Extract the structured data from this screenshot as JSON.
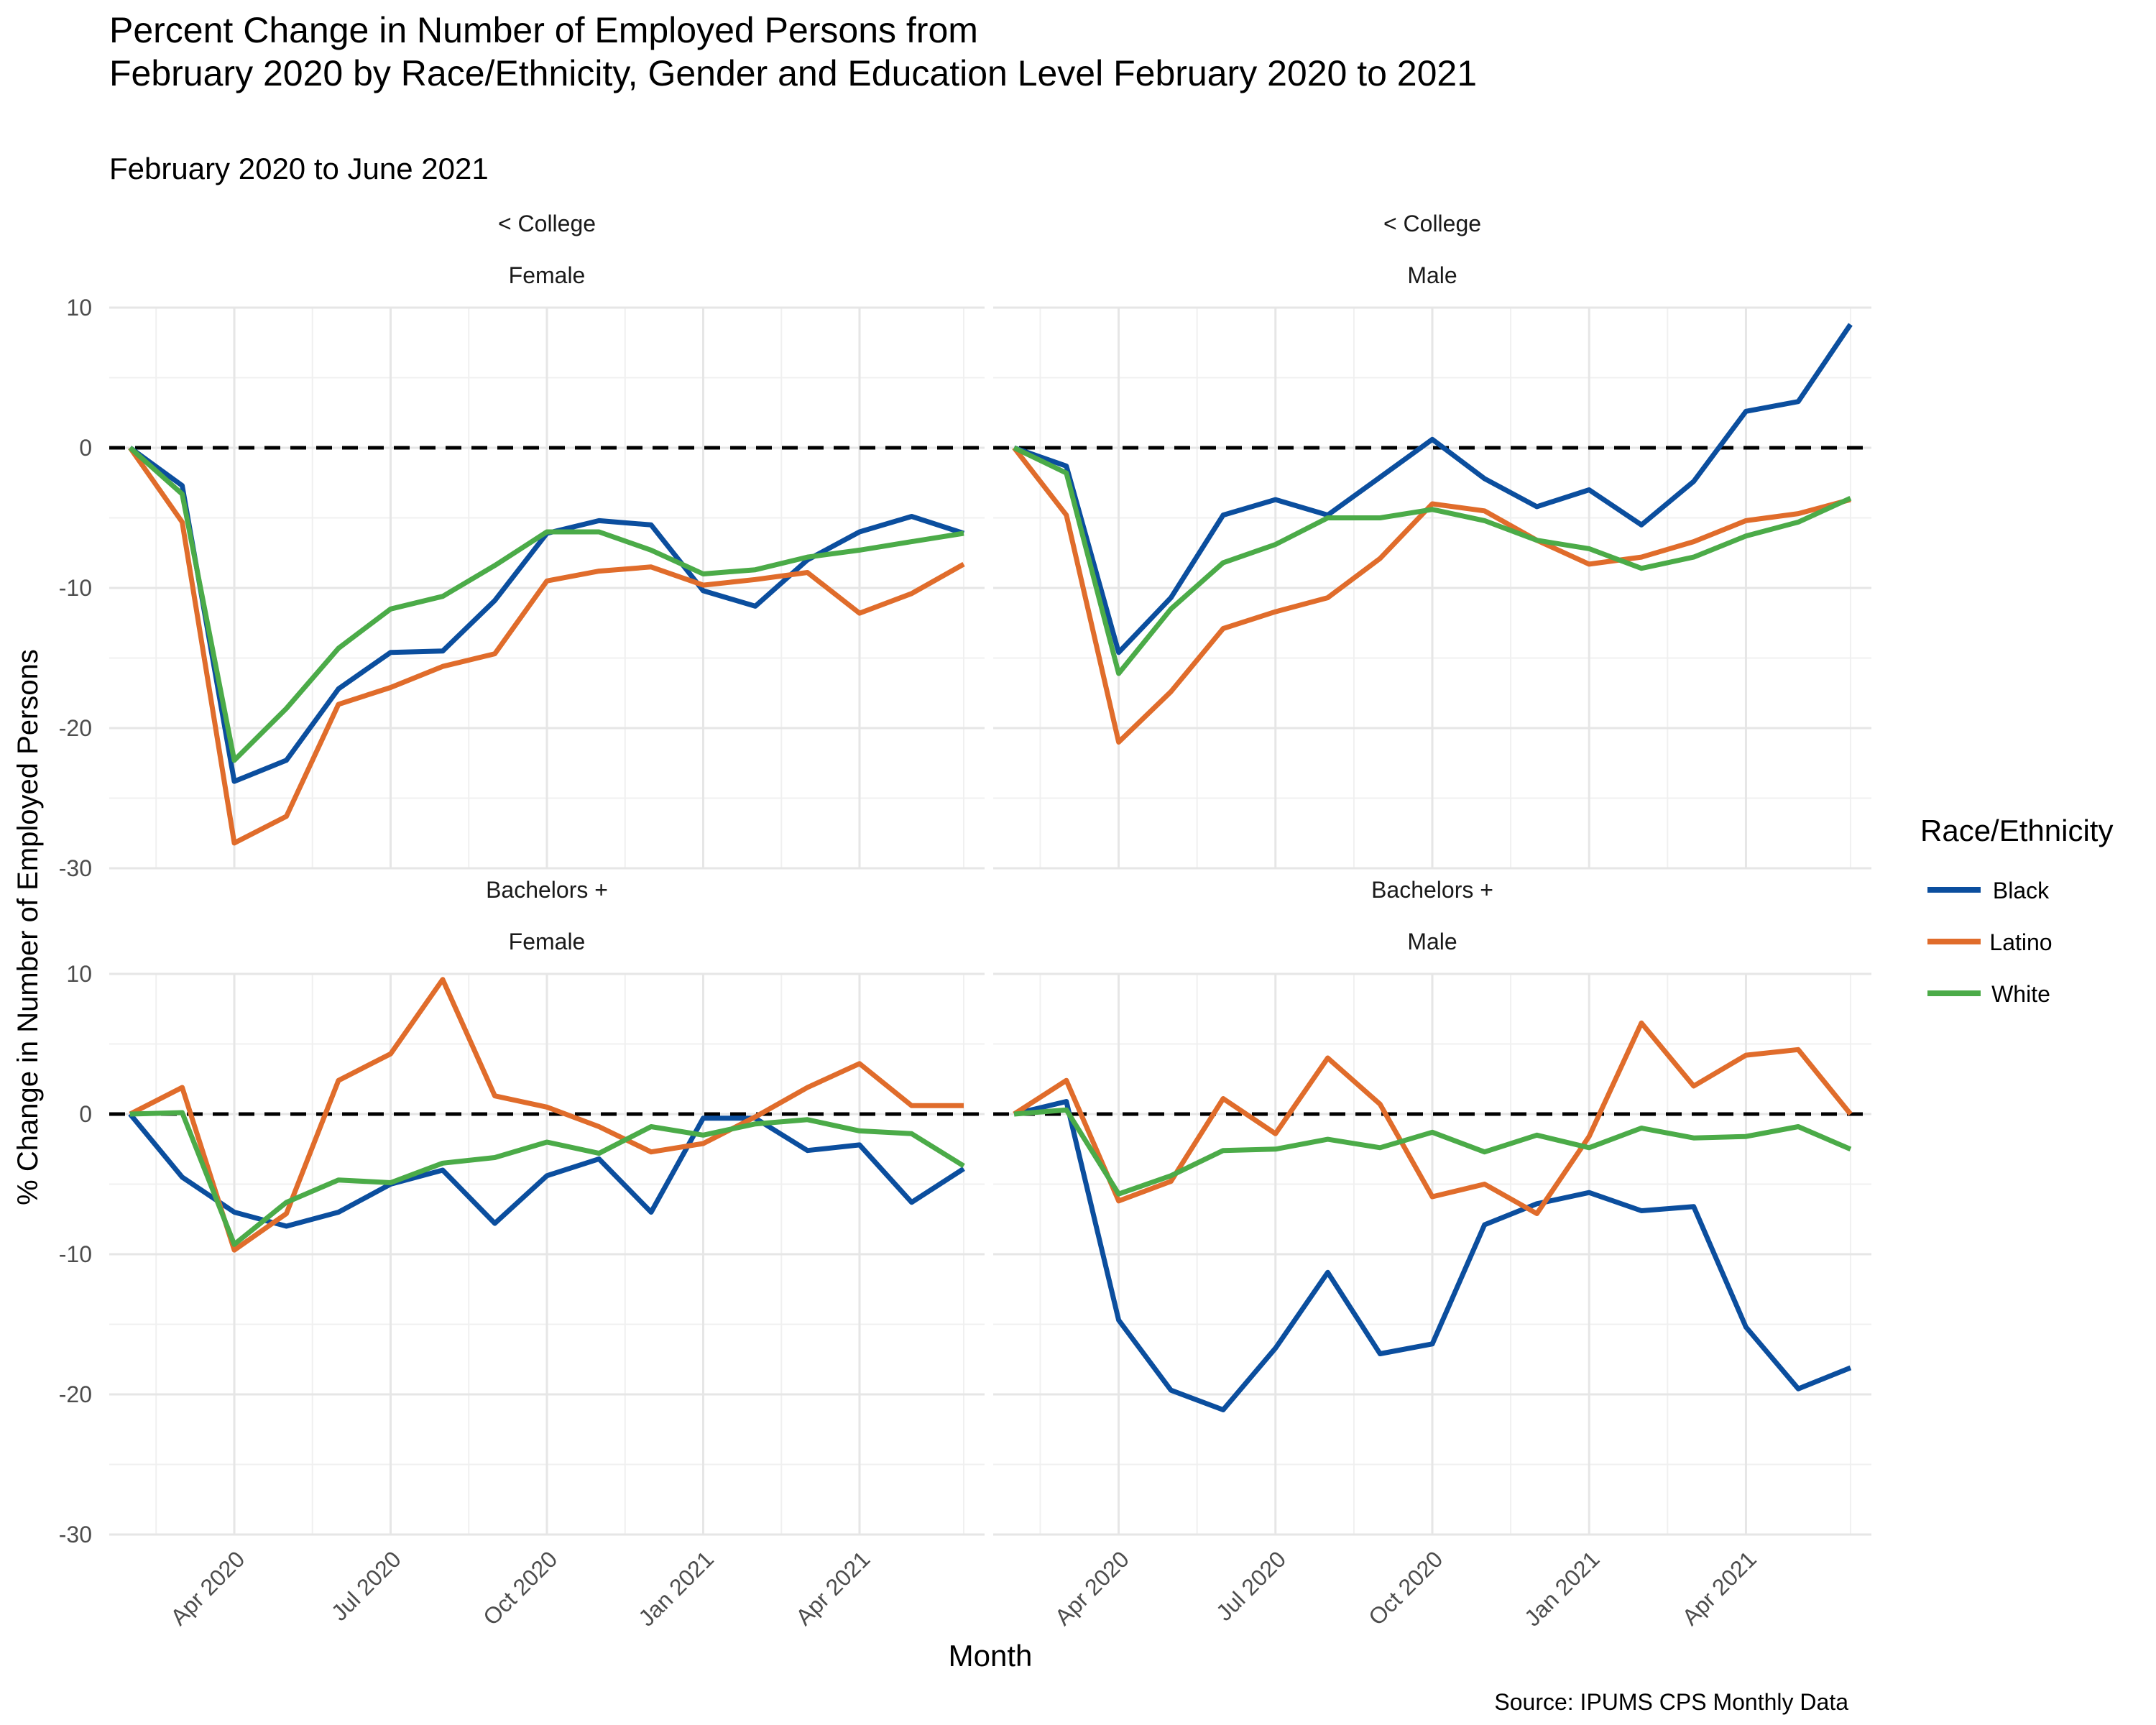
{
  "title_lines": [
    "Percent Change in Number of Employed Persons from",
    "February 2020 by Race/Ethnicity, Gender and Education Level February 2020 to 2021"
  ],
  "subtitle": "February 2020 to June 2021",
  "caption": "Source: IPUMS CPS Monthly Data",
  "xlabel": "Month",
  "ylabel": "% Change in Number of Employed Persons",
  "legend": {
    "title": "Race/Ethnicity",
    "position": "right",
    "entries": [
      {
        "name": "Black",
        "color": "#0b4e9e"
      },
      {
        "name": "Latino",
        "color": "#e06c2b"
      },
      {
        "name": "White",
        "color": "#4bab48"
      }
    ]
  },
  "chart_data": {
    "type": "line",
    "ylim": [
      -30,
      10
    ],
    "y_ticks": [
      "10",
      "0",
      "-10",
      "-20",
      "-30"
    ],
    "y_tick_values": [
      10,
      0,
      -10,
      -20,
      -30
    ],
    "reference_line": {
      "y": 0,
      "style": "dashed"
    },
    "x_ticks": [
      "Apr 2020",
      "Jul 2020",
      "Oct 2020",
      "Jan 2021",
      "Apr 2021"
    ],
    "x_tick_dates": [
      "2020-04",
      "2020-07",
      "2020-10",
      "2021-01",
      "2021-04"
    ],
    "x": [
      "2020-02",
      "2020-03",
      "2020-04",
      "2020-05",
      "2020-06",
      "2020-07",
      "2020-08",
      "2020-09",
      "2020-10",
      "2020-11",
      "2020-12",
      "2021-01",
      "2021-02",
      "2021-03",
      "2021-04",
      "2021-05",
      "2021-06"
    ],
    "grid": true,
    "panels": [
      {
        "strip": [
          "< College",
          "Female"
        ],
        "series": [
          {
            "name": "Black",
            "values": [
              0,
              -2.7,
              -23.8,
              -22.3,
              -17.2,
              -14.6,
              -14.5,
              -10.9,
              -6.1,
              -5.2,
              -5.5,
              -10.2,
              -11.3,
              -8.0,
              -6.0,
              -4.9,
              -6.1
            ]
          },
          {
            "name": "Latino",
            "values": [
              0,
              -5.3,
              -28.2,
              -26.3,
              -18.3,
              -17.1,
              -15.6,
              -14.7,
              -9.5,
              -8.8,
              -8.5,
              -9.8,
              -9.4,
              -8.9,
              -11.8,
              -10.4,
              -8.3
            ]
          },
          {
            "name": "White",
            "values": [
              0,
              -3.3,
              -22.3,
              -18.6,
              -14.3,
              -11.5,
              -10.6,
              -8.4,
              -6.0,
              -6.0,
              -7.3,
              -9.0,
              -8.7,
              -7.8,
              -7.3,
              -6.7,
              -6.1
            ]
          }
        ]
      },
      {
        "strip": [
          "< College",
          "Male"
        ],
        "series": [
          {
            "name": "Black",
            "values": [
              0,
              -1.3,
              -14.6,
              -10.7,
              -4.8,
              -3.7,
              -4.8,
              -2.1,
              0.6,
              -2.2,
              -4.2,
              -3.0,
              -5.5,
              -2.4,
              2.6,
              3.3,
              8.8
            ]
          },
          {
            "name": "Latino",
            "values": [
              0,
              -4.8,
              -21.0,
              -17.4,
              -12.9,
              -11.7,
              -10.7,
              -7.9,
              -4.0,
              -4.5,
              -6.6,
              -8.3,
              -7.8,
              -6.7,
              -5.2,
              -4.7,
              -3.7
            ]
          },
          {
            "name": "White",
            "values": [
              0,
              -1.8,
              -16.1,
              -11.5,
              -8.2,
              -6.9,
              -5.0,
              -5.0,
              -4.4,
              -5.2,
              -6.6,
              -7.2,
              -8.6,
              -7.8,
              -6.3,
              -5.3,
              -3.6
            ]
          }
        ]
      },
      {
        "strip": [
          "Bachelors +",
          "Female"
        ],
        "series": [
          {
            "name": "Black",
            "values": [
              0,
              -4.5,
              -7.0,
              -8.0,
              -7.0,
              -5.0,
              -4.0,
              -7.8,
              -4.4,
              -3.2,
              -7.0,
              -0.3,
              -0.3,
              -2.6,
              -2.2,
              -6.3,
              -3.9
            ]
          },
          {
            "name": "Latino",
            "values": [
              0,
              1.9,
              -9.7,
              -7.1,
              2.4,
              4.3,
              9.6,
              1.3,
              0.5,
              -0.9,
              -2.7,
              -2.1,
              -0.2,
              1.9,
              3.6,
              0.6,
              0.6
            ]
          },
          {
            "name": "White",
            "values": [
              0,
              0.1,
              -9.3,
              -6.3,
              -4.7,
              -4.9,
              -3.5,
              -3.1,
              -2.0,
              -2.8,
              -0.9,
              -1.5,
              -0.7,
              -0.4,
              -1.2,
              -1.4,
              -3.7
            ]
          }
        ]
      },
      {
        "strip": [
          "Bachelors +",
          "Male"
        ],
        "series": [
          {
            "name": "Black",
            "values": [
              0,
              0.9,
              -14.7,
              -19.7,
              -21.1,
              -16.7,
              -11.3,
              -17.1,
              -16.4,
              -7.9,
              -6.4,
              -5.6,
              -6.9,
              -6.6,
              -15.2,
              -19.6,
              -18.1
            ]
          },
          {
            "name": "Latino",
            "values": [
              0,
              2.4,
              -6.2,
              -4.8,
              1.1,
              -1.4,
              4.0,
              0.7,
              -5.9,
              -5.0,
              -7.1,
              -1.6,
              6.5,
              2.0,
              4.2,
              4.6,
              0.0
            ]
          },
          {
            "name": "White",
            "values": [
              0,
              0.3,
              -5.7,
              -4.4,
              -2.6,
              -2.5,
              -1.8,
              -2.4,
              -1.3,
              -2.7,
              -1.5,
              -2.4,
              -1.0,
              -1.7,
              -1.6,
              -0.9,
              -2.5
            ]
          }
        ]
      }
    ]
  }
}
